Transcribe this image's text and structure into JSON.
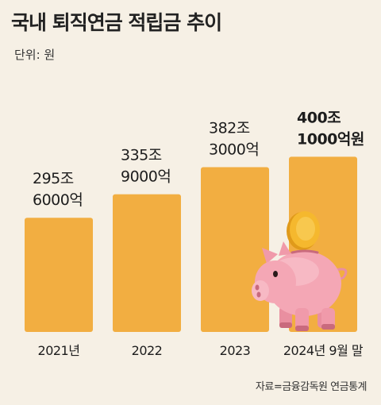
{
  "title": "국내 퇴직연금 적립금 추이",
  "unit_label": "단위: 원",
  "source": "자료=금융감독원 연금통계",
  "colors": {
    "bar": "#f2ae41",
    "background": "#f6f0e5",
    "piggy": "#f4a7b5",
    "coin": "#f5b82e"
  },
  "chart_data": {
    "type": "bar",
    "categories": [
      "2021년",
      "2022",
      "2023",
      "2024년 9월 말"
    ],
    "values": [
      295.6,
      335.9,
      382.3,
      400.1
    ],
    "value_unit": "조원",
    "data_labels": [
      [
        "295조",
        "6000억"
      ],
      [
        "335조",
        "9000억"
      ],
      [
        "382조",
        "3000억"
      ],
      [
        "400조",
        "1000억원"
      ]
    ],
    "highlight_index": 3,
    "title": "국내 퇴직연금 적립금 추이",
    "xlabel": "",
    "ylabel": "",
    "grid": false,
    "legend": "none",
    "decoration": "piggy-bank-icon"
  }
}
